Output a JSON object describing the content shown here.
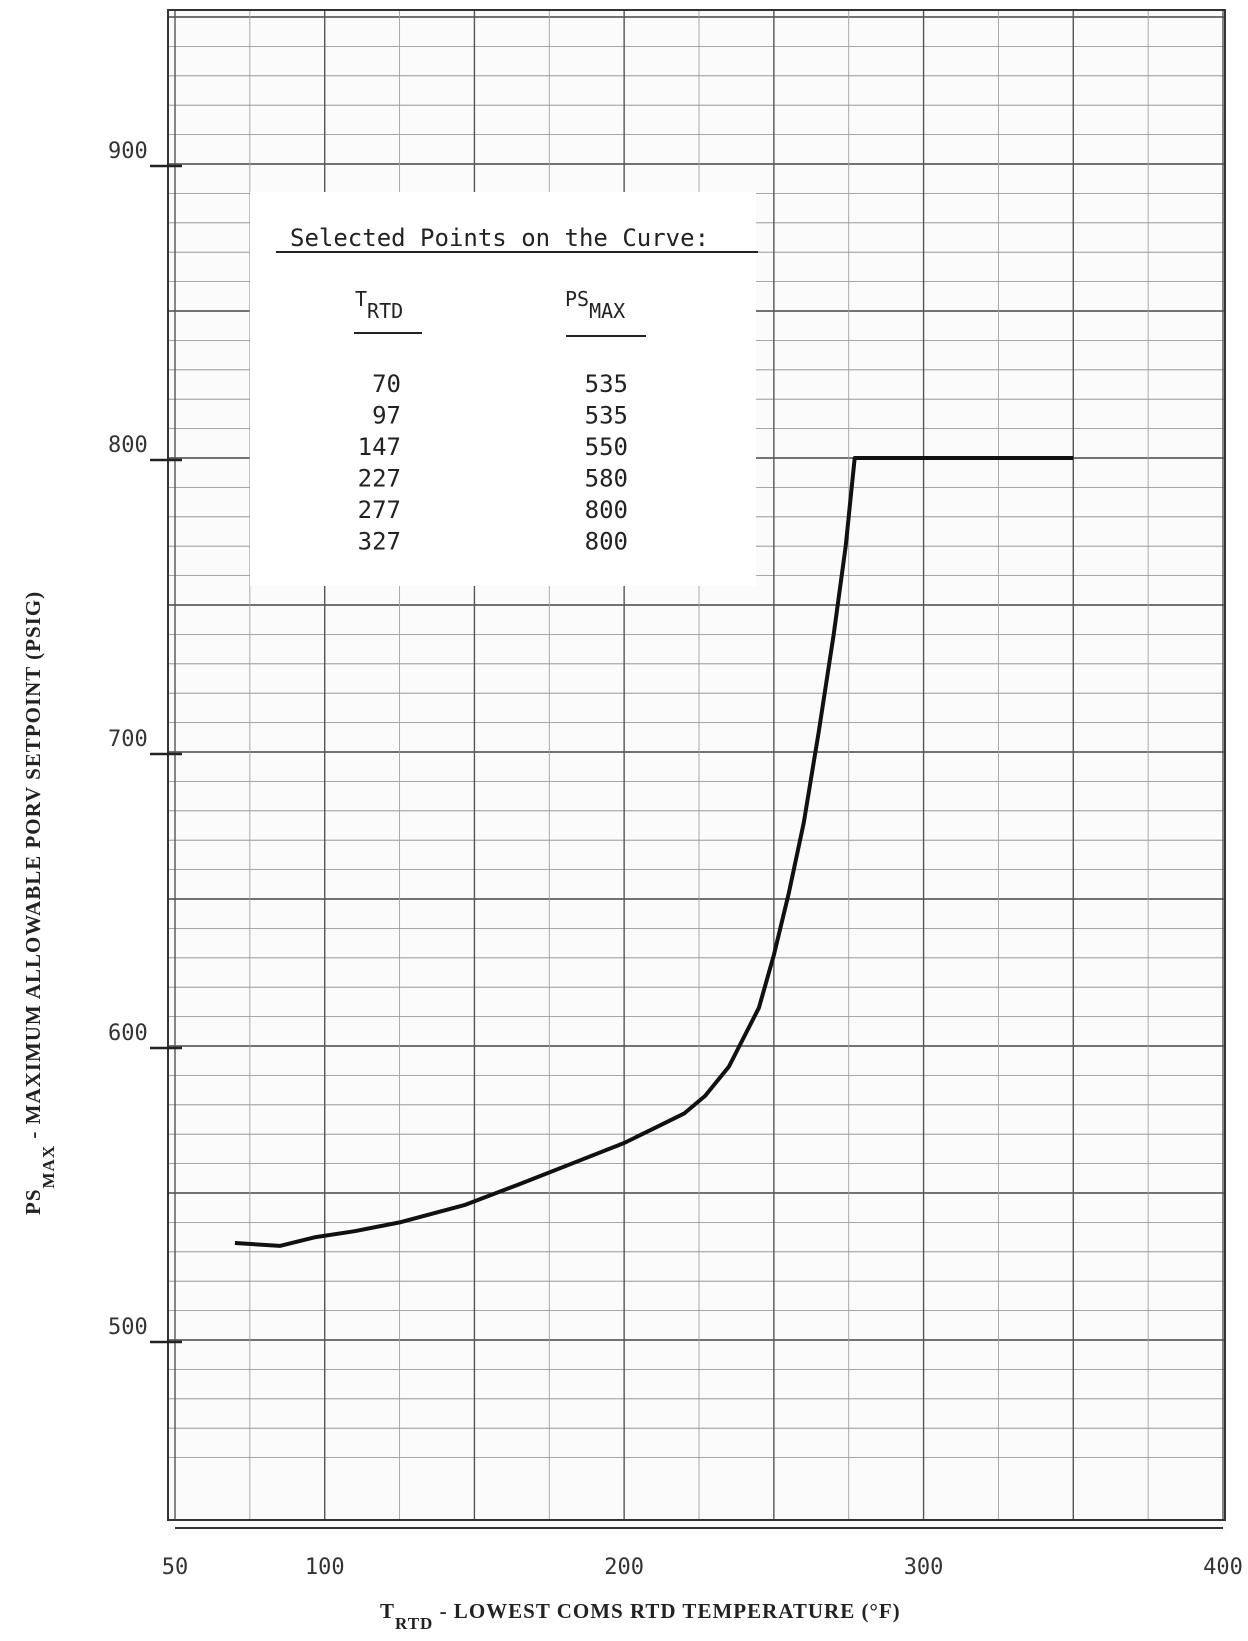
{
  "chart_data": {
    "type": "line",
    "xlabel_main": "T",
    "xlabel_sub": "RTD",
    "xlabel_rest": " - LOWEST COMS RTD TEMPERATURE (°F)",
    "ylabel_main": "PS",
    "ylabel_sub": "MAX",
    "ylabel_rest": " - MAXIMUM ALLOWABLE PORV SETPOINT (PSIG)",
    "xlim": [
      50,
      400
    ],
    "ylim": [
      450,
      950
    ],
    "x_ticks": [
      50,
      100,
      200,
      300,
      400
    ],
    "y_ticks": [
      500,
      600,
      700,
      800,
      900
    ],
    "grid": true,
    "series": [
      {
        "x": [
          70,
          85,
          97,
          110,
          125,
          147,
          165,
          185,
          200,
          210,
          220,
          227,
          235,
          245,
          250,
          255,
          260,
          265,
          270,
          274,
          277,
          290,
          310,
          327,
          350
        ],
        "y": [
          533,
          532,
          535,
          537,
          540,
          546,
          553,
          561,
          567,
          572,
          577,
          583,
          593,
          613,
          631,
          652,
          676,
          707,
          740,
          770,
          800,
          800,
          800,
          800,
          800
        ]
      }
    ],
    "table": {
      "title": "Selected Points on the Curve:",
      "col1_main": "T",
      "col1_sub": "RTD",
      "col2_main": "PS",
      "col2_sub": "MAX",
      "rows": [
        [
          "70",
          "535"
        ],
        [
          "97",
          "535"
        ],
        [
          "147",
          "550"
        ],
        [
          "227",
          "580"
        ],
        [
          "277",
          "800"
        ],
        [
          "327",
          "800"
        ]
      ]
    }
  }
}
